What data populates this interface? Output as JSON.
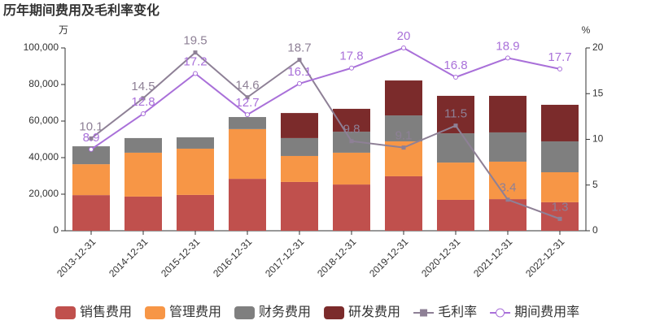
{
  "chart_data": {
    "type": "bar+line",
    "title": "历年期间费用及毛利率变化",
    "y_unit": "万",
    "y2_unit": "%",
    "categories": [
      "2013-12-31",
      "2014-12-31",
      "2015-12-31",
      "2016-12-31",
      "2017-12-31",
      "2018-12-31",
      "2019-12-31",
      "2020-12-31",
      "2021-12-31",
      "2022-12-31"
    ],
    "ylim": [
      0,
      100000
    ],
    "yticks": [
      0,
      {
        "value": 20000,
        "label": "20,000"
      },
      {
        "value": 40000,
        "label": "40,000"
      },
      {
        "value": 60000,
        "label": "60,000"
      },
      {
        "value": 80000,
        "label": "80,000"
      },
      {
        "value": 100000,
        "label": "100,000"
      }
    ],
    "y2lim": [
      0,
      20
    ],
    "y2ticks": [
      0,
      5,
      10,
      15,
      20
    ],
    "series": [
      {
        "name": "销售费用",
        "color": "#c0504d",
        "type": "bar",
        "values": [
          19500,
          18700,
          19600,
          28400,
          26700,
          25300,
          29800,
          16900,
          17300,
          15600
        ]
      },
      {
        "name": "管理费用",
        "color": "#f79646",
        "type": "bar",
        "values": [
          16900,
          24000,
          25300,
          27200,
          14200,
          17400,
          19100,
          20400,
          20500,
          16400
        ]
      },
      {
        "name": "财务费用",
        "color": "#7f7f7f",
        "type": "bar",
        "values": [
          9800,
          8000,
          6200,
          6600,
          9800,
          11500,
          14200,
          16000,
          16000,
          16900
        ]
      },
      {
        "name": "研发费用",
        "color": "#7b2b2b",
        "type": "bar",
        "values": [
          0,
          0,
          0,
          0,
          13700,
          12500,
          19100,
          20500,
          20000,
          20000
        ]
      },
      {
        "name": "毛利率",
        "color": "#8e8096",
        "type": "line",
        "marker": "square",
        "axis": "y2",
        "values": [
          10.1,
          14.5,
          19.5,
          14.6,
          18.7,
          9.8,
          9.1,
          11.5,
          3.4,
          1.3
        ]
      },
      {
        "name": "期间费用率",
        "color": "#a970d9",
        "type": "line",
        "marker": "circle",
        "axis": "y2",
        "values": [
          8.9,
          12.8,
          17.2,
          12.7,
          16.1,
          17.8,
          20,
          16.8,
          18.9,
          17.7
        ]
      }
    ]
  }
}
